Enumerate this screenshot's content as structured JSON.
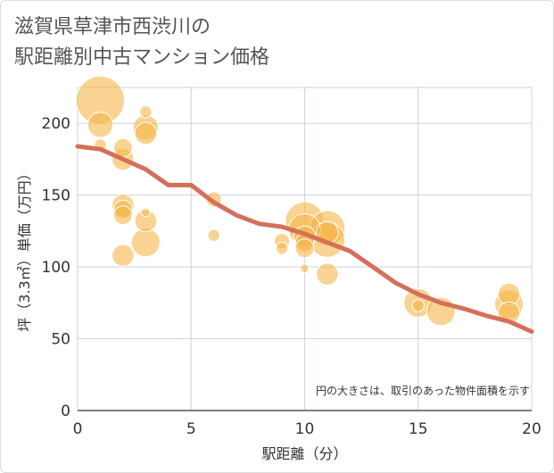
{
  "title": {
    "line1": "滋賀県草津市西渋川の",
    "line2": "駅距離別中古マンション価格"
  },
  "colors": {
    "bubble": "#f5b54a",
    "line": "#d4705a",
    "grid": "#c9d3e0",
    "background": "#ffffff"
  },
  "chart_data": {
    "type": "scatter",
    "xlabel": "駅距離（分）",
    "ylabel": "坪（3.3㎡）単価（万円）",
    "xlim": [
      0,
      20
    ],
    "ylim": [
      0,
      225
    ],
    "xticks": [
      0,
      5,
      10,
      15,
      20
    ],
    "yticks": [
      0,
      50,
      100,
      150,
      200
    ],
    "grid": true,
    "note": "円の大きさは、取引のあった物件面積を示す",
    "bubbles": [
      {
        "x": 1,
        "y": 216,
        "size": 13
      },
      {
        "x": 1,
        "y": 199,
        "size": 6
      },
      {
        "x": 1,
        "y": 185,
        "size": 2
      },
      {
        "x": 2,
        "y": 183,
        "size": 4
      },
      {
        "x": 2,
        "y": 175,
        "size": 5
      },
      {
        "x": 2,
        "y": 143,
        "size": 5
      },
      {
        "x": 2,
        "y": 140,
        "size": 4
      },
      {
        "x": 2,
        "y": 136,
        "size": 4
      },
      {
        "x": 2,
        "y": 108,
        "size": 5
      },
      {
        "x": 3,
        "y": 208,
        "size": 2
      },
      {
        "x": 3,
        "y": 197,
        "size": 6
      },
      {
        "x": 3,
        "y": 193,
        "size": 5
      },
      {
        "x": 3,
        "y": 138,
        "size": 1
      },
      {
        "x": 3,
        "y": 132,
        "size": 5
      },
      {
        "x": 3,
        "y": 117,
        "size": 7
      },
      {
        "x": 6,
        "y": 147,
        "size": 3
      },
      {
        "x": 6,
        "y": 122,
        "size": 2
      },
      {
        "x": 9,
        "y": 118,
        "size": 3
      },
      {
        "x": 9,
        "y": 113,
        "size": 2
      },
      {
        "x": 10,
        "y": 132,
        "size": 10
      },
      {
        "x": 10,
        "y": 126,
        "size": 8
      },
      {
        "x": 10,
        "y": 121,
        "size": 5
      },
      {
        "x": 10,
        "y": 117,
        "size": 4
      },
      {
        "x": 10,
        "y": 113,
        "size": 4
      },
      {
        "x": 10,
        "y": 99,
        "size": 1
      },
      {
        "x": 11,
        "y": 127,
        "size": 9
      },
      {
        "x": 11,
        "y": 124,
        "size": 5
      },
      {
        "x": 11,
        "y": 119,
        "size": 9
      },
      {
        "x": 11,
        "y": 95,
        "size": 5
      },
      {
        "x": 15,
        "y": 75,
        "size": 7
      },
      {
        "x": 15,
        "y": 73,
        "size": 2
      },
      {
        "x": 16,
        "y": 69,
        "size": 7
      },
      {
        "x": 19,
        "y": 81,
        "size": 5
      },
      {
        "x": 19,
        "y": 74,
        "size": 7
      },
      {
        "x": 19,
        "y": 68,
        "size": 5
      }
    ],
    "trend": {
      "x": [
        0,
        1,
        2,
        3,
        4,
        5,
        6,
        7,
        8,
        9,
        10,
        11,
        12,
        13,
        14,
        15,
        16,
        17,
        18,
        19,
        20
      ],
      "y": [
        184,
        182,
        175,
        168,
        157,
        157,
        145,
        136,
        130,
        128,
        123,
        117,
        111,
        100,
        89,
        81,
        75,
        71,
        66,
        62,
        55
      ]
    }
  }
}
